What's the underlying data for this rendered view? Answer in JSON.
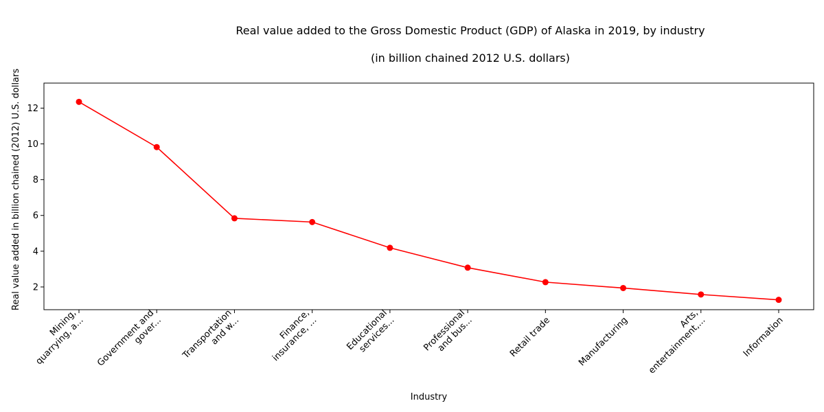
{
  "chart_data": {
    "type": "line",
    "title_lines": [
      "Real value added to the Gross Domestic Product (GDP) of Alaska in 2019, by industry",
      "(in billion chained 2012 U.S. dollars)"
    ],
    "xlabel": "Industry",
    "ylabel": "Real value added in billion chained (2012) U.S. dollars",
    "categories": [
      [
        "Mining,",
        "quarrying, a..."
      ],
      [
        "Government and",
        "gover..."
      ],
      [
        "Transportation",
        "and w..."
      ],
      [
        "Finance,",
        "insurance, ..."
      ],
      [
        "Educational",
        "services..."
      ],
      [
        "Professional",
        "and bus..."
      ],
      [
        "Retail trade"
      ],
      [
        "Manufacturing"
      ],
      [
        "Arts,",
        "entertainment,..."
      ],
      [
        "Information"
      ]
    ],
    "values": [
      12.35,
      9.82,
      5.84,
      5.63,
      4.19,
      3.08,
      2.27,
      1.94,
      1.58,
      1.28
    ],
    "yticks": [
      2,
      4,
      6,
      8,
      10,
      12
    ],
    "ylim": [
      0.73,
      13.4
    ],
    "line_color": "#ff0000",
    "marker_color": "#ff0000",
    "grid": false
  }
}
